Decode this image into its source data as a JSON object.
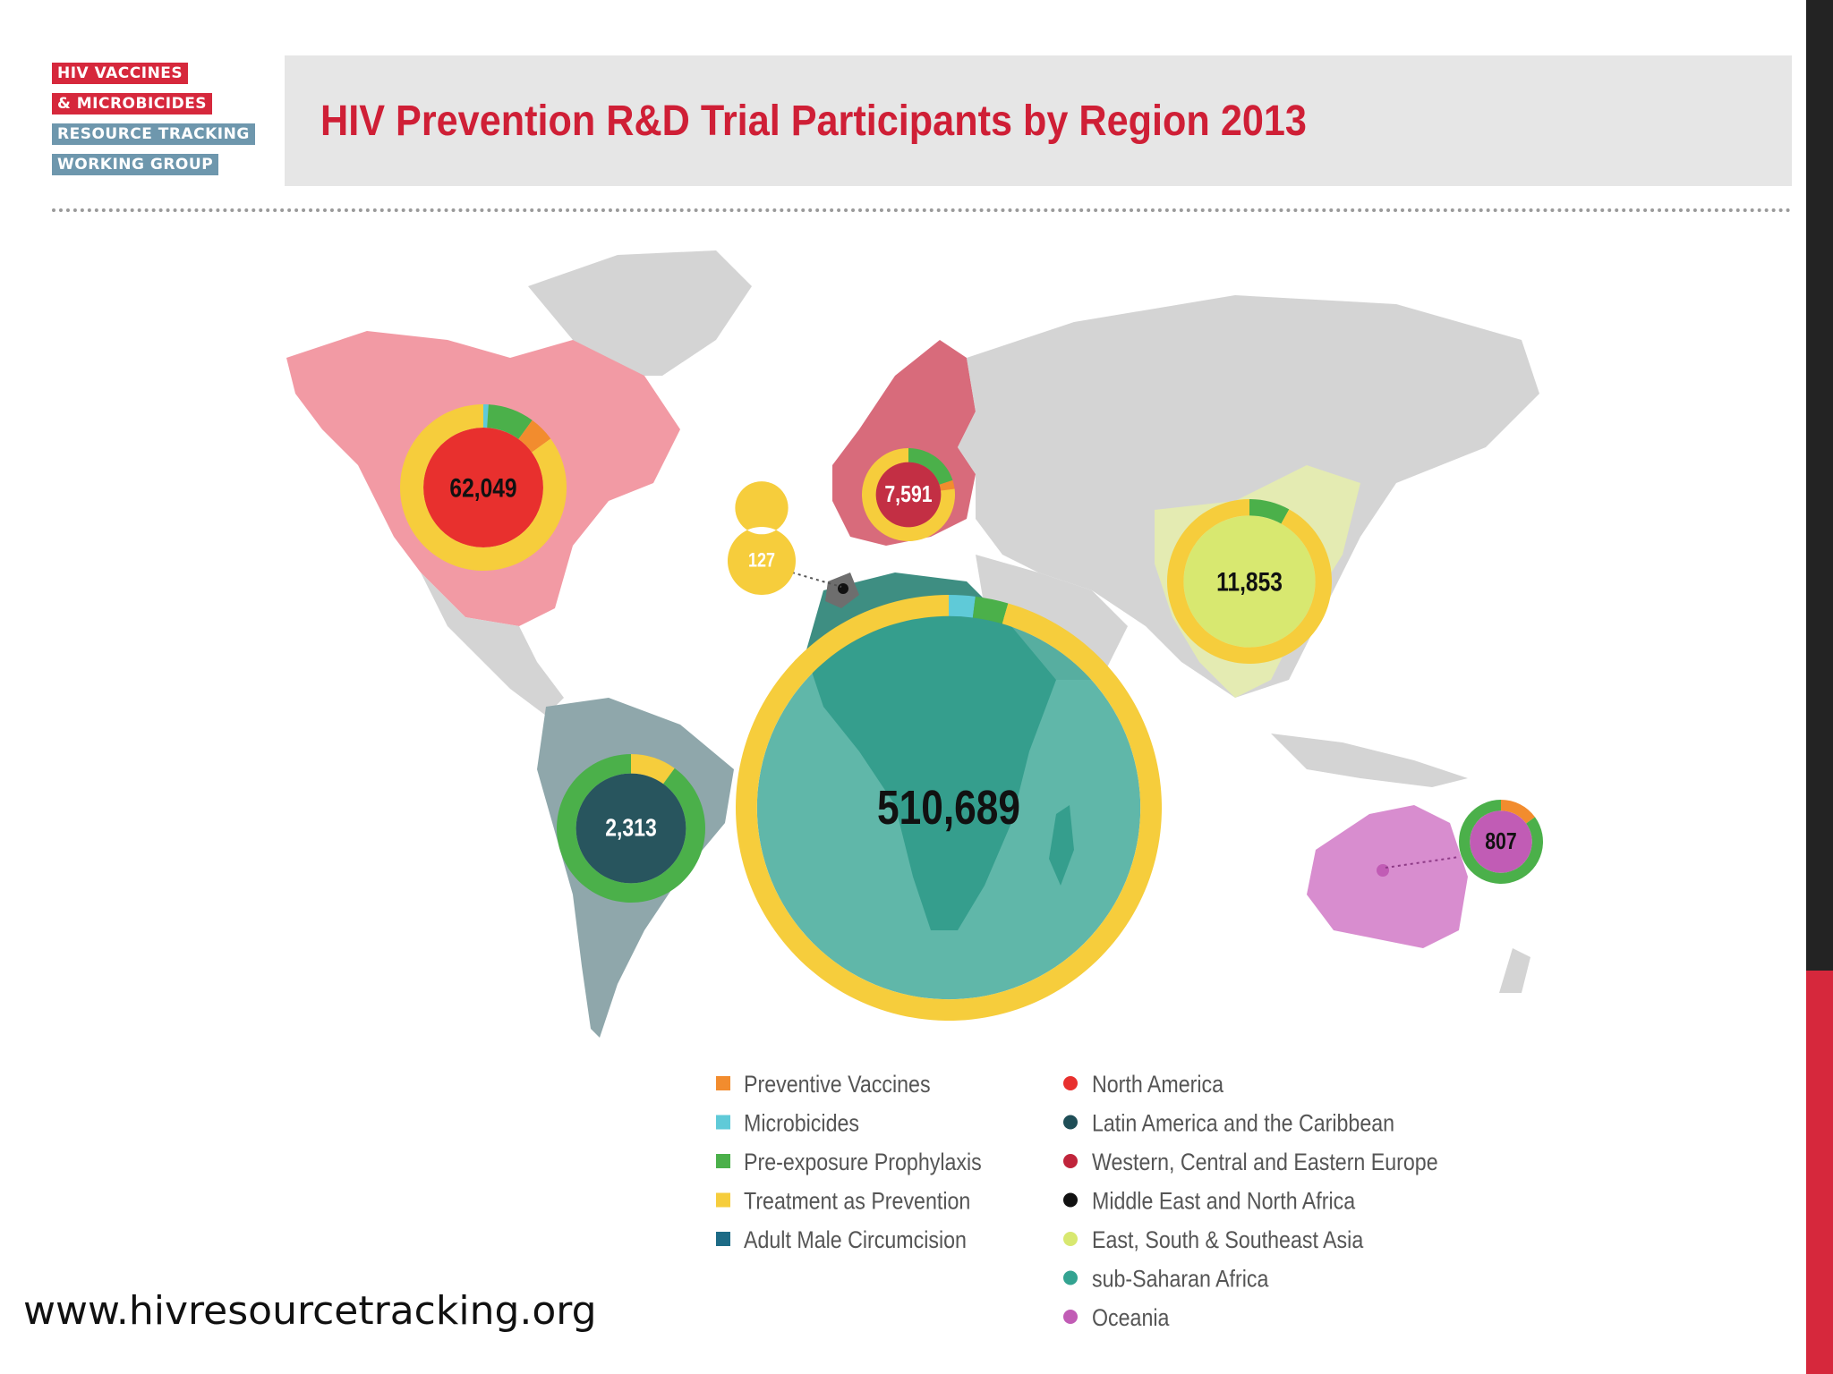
{
  "logo": {
    "lines": [
      "HIV VACCINES",
      "& MICROBICIDES",
      "RESOURCE TRACKING",
      "WORKING GROUP"
    ]
  },
  "title": "HIV Prevention R&D Trial Participants by Region 2013",
  "footer_url": "www.hivresourcetracking.org",
  "colors": {
    "preventive_vaccines": "#f28c2e",
    "microbicides": "#5fcad8",
    "prep": "#4bb04a",
    "treatment_as_prevention": "#f6cd3c",
    "adult_male_circumcision": "#1d6b86",
    "north_america": "#e8302e",
    "latin_america": "#1f4e57",
    "europe": "#c0243b",
    "mena": "#111111",
    "asia": "#d8e870",
    "ssa": "#33a391",
    "oceania": "#c15cb5",
    "map_land": "#d4d4d4"
  },
  "chart_data": {
    "type": "pie",
    "title": "HIV Prevention R&D Trial Participants by Region 2013",
    "legend_interventions": [
      {
        "label": "Preventive Vaccines",
        "color": "#f28c2e"
      },
      {
        "label": "Microbicides",
        "color": "#5fcad8"
      },
      {
        "label": "Pre-exposure Prophylaxis",
        "color": "#4bb04a"
      },
      {
        "label": "Treatment as Prevention",
        "color": "#f6cd3c"
      },
      {
        "label": "Adult Male Circumcision",
        "color": "#1d6b86"
      }
    ],
    "legend_regions": [
      {
        "label": "North America",
        "color": "#e8302e"
      },
      {
        "label": "Latin America and the Caribbean",
        "color": "#1f4e57"
      },
      {
        "label": "Western, Central and Eastern Europe",
        "color": "#c0243b"
      },
      {
        "label": "Middle East and North Africa",
        "color": "#111111"
      },
      {
        "label": "East, South & Southeast Asia",
        "color": "#d8e870"
      },
      {
        "label": "sub-Saharan Africa",
        "color": "#33a391"
      },
      {
        "label": "Oceania",
        "color": "#c15cb5"
      }
    ],
    "regions": [
      {
        "region": "North America",
        "total": 62049,
        "label": "62,049",
        "breakdown": [
          {
            "category": "Microbicides",
            "share": 0.01
          },
          {
            "category": "Pre-exposure Prophylaxis",
            "share": 0.09
          },
          {
            "category": "Preventive Vaccines",
            "share": 0.05
          },
          {
            "category": "Treatment as Prevention",
            "share": 0.85
          }
        ]
      },
      {
        "region": "Western, Central and Eastern Europe",
        "total": 7591,
        "label": "7,591",
        "breakdown": [
          {
            "category": "Pre-exposure Prophylaxis",
            "share": 0.2
          },
          {
            "category": "Preventive Vaccines",
            "share": 0.03
          },
          {
            "category": "Treatment as Prevention",
            "share": 0.77
          }
        ]
      },
      {
        "region": "Middle East and North Africa",
        "total": 127,
        "label": "127",
        "breakdown": [
          {
            "category": "Treatment as Prevention",
            "share": 1.0
          }
        ]
      },
      {
        "region": "East, South & Southeast Asia",
        "total": 11853,
        "label": "11,853",
        "breakdown": [
          {
            "category": "Pre-exposure Prophylaxis",
            "share": 0.08
          },
          {
            "category": "Treatment as Prevention",
            "share": 0.92
          }
        ]
      },
      {
        "region": "sub-Saharan Africa",
        "total": 510689,
        "label": "510,689",
        "breakdown": [
          {
            "category": "Microbicides",
            "share": 0.02
          },
          {
            "category": "Pre-exposure Prophylaxis",
            "share": 0.025
          },
          {
            "category": "Treatment as Prevention",
            "share": 0.955
          }
        ]
      },
      {
        "region": "Latin America and the Caribbean",
        "total": 2313,
        "label": "2,313",
        "breakdown": [
          {
            "category": "Treatment as Prevention",
            "share": 0.1
          },
          {
            "category": "Pre-exposure Prophylaxis",
            "share": 0.9
          }
        ]
      },
      {
        "region": "Oceania",
        "total": 807,
        "label": "807",
        "breakdown": [
          {
            "category": "Preventive Vaccines",
            "share": 0.15
          },
          {
            "category": "Pre-exposure Prophylaxis",
            "share": 0.85
          }
        ]
      }
    ]
  }
}
